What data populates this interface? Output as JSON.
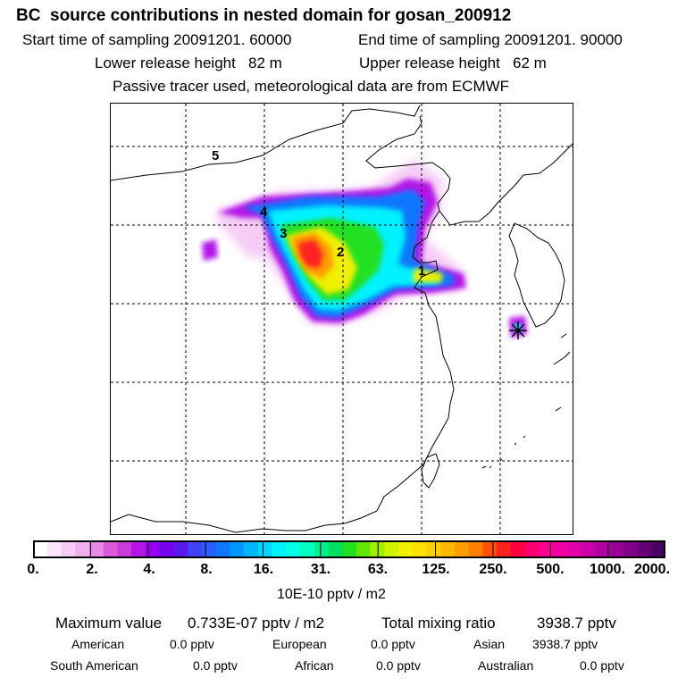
{
  "header": {
    "title": "BC  source contributions in nested domain for gosan_200912",
    "start_time": "Start time of sampling 20091201. 60000",
    "end_time": "End time of sampling 20091201. 90000",
    "lower_height": "Lower release height   82 m",
    "upper_height": "Upper release height   62 m",
    "tracer_note": "Passive tracer used, meteorological data are from ECMWF"
  },
  "map": {
    "region_labels": [
      "5",
      "4",
      "3",
      "2",
      "1"
    ],
    "colors": {
      "frame": "#000000",
      "grid": "#000000",
      "coast": "#000000",
      "receptor_star": "#000000"
    }
  },
  "colorbar": {
    "unit": "10E-10 pptv / m2",
    "ticks": [
      "0.",
      "2.",
      "4.",
      "8.",
      "16.",
      "31.",
      "63.",
      "125.",
      "250.",
      "500.",
      "1000.",
      "2000."
    ],
    "colors": [
      "#ffffff",
      "#fbe6fb",
      "#f6ccf6",
      "#f0b0f0",
      "#e88ae8",
      "#da5ad8",
      "#c93ad8",
      "#b414e8",
      "#9a00f0",
      "#7800f0",
      "#5a18ee",
      "#4040f4",
      "#2a5cff",
      "#1078ff",
      "#0096ff",
      "#00b6ff",
      "#00d6ff",
      "#00f2ff",
      "#00ffe6",
      "#00ffc0",
      "#00f090",
      "#00e060",
      "#20e020",
      "#60e800",
      "#a0f000",
      "#d0f400",
      "#f0f000",
      "#ffe000",
      "#ffd000",
      "#ffb800",
      "#ff9e00",
      "#ff8000",
      "#ff5000",
      "#ff2020",
      "#ff0040",
      "#ff0070",
      "#ff0095",
      "#f000a0",
      "#e000a8",
      "#cc00a8",
      "#b000a0",
      "#9a0096",
      "#80008a",
      "#660078",
      "#4a0060"
    ]
  },
  "stats": {
    "max_value_label": "Maximum value",
    "max_value": "0.733E-07 pptv / m2",
    "total_label": "Total mixing ratio",
    "total_value": "3938.7 pptv",
    "american_label": "American",
    "american_value": "0.0 pptv",
    "european_label": "European",
    "european_value": "0.0 pptv",
    "asian_label": "Asian",
    "asian_value": "3938.7 pptv",
    "south_american_label": "South American",
    "south_american_value": "0.0 pptv",
    "african_label": "African",
    "african_value": "0.0 pptv",
    "australian_label": "Australian",
    "australian_value": "0.0 pptv"
  }
}
